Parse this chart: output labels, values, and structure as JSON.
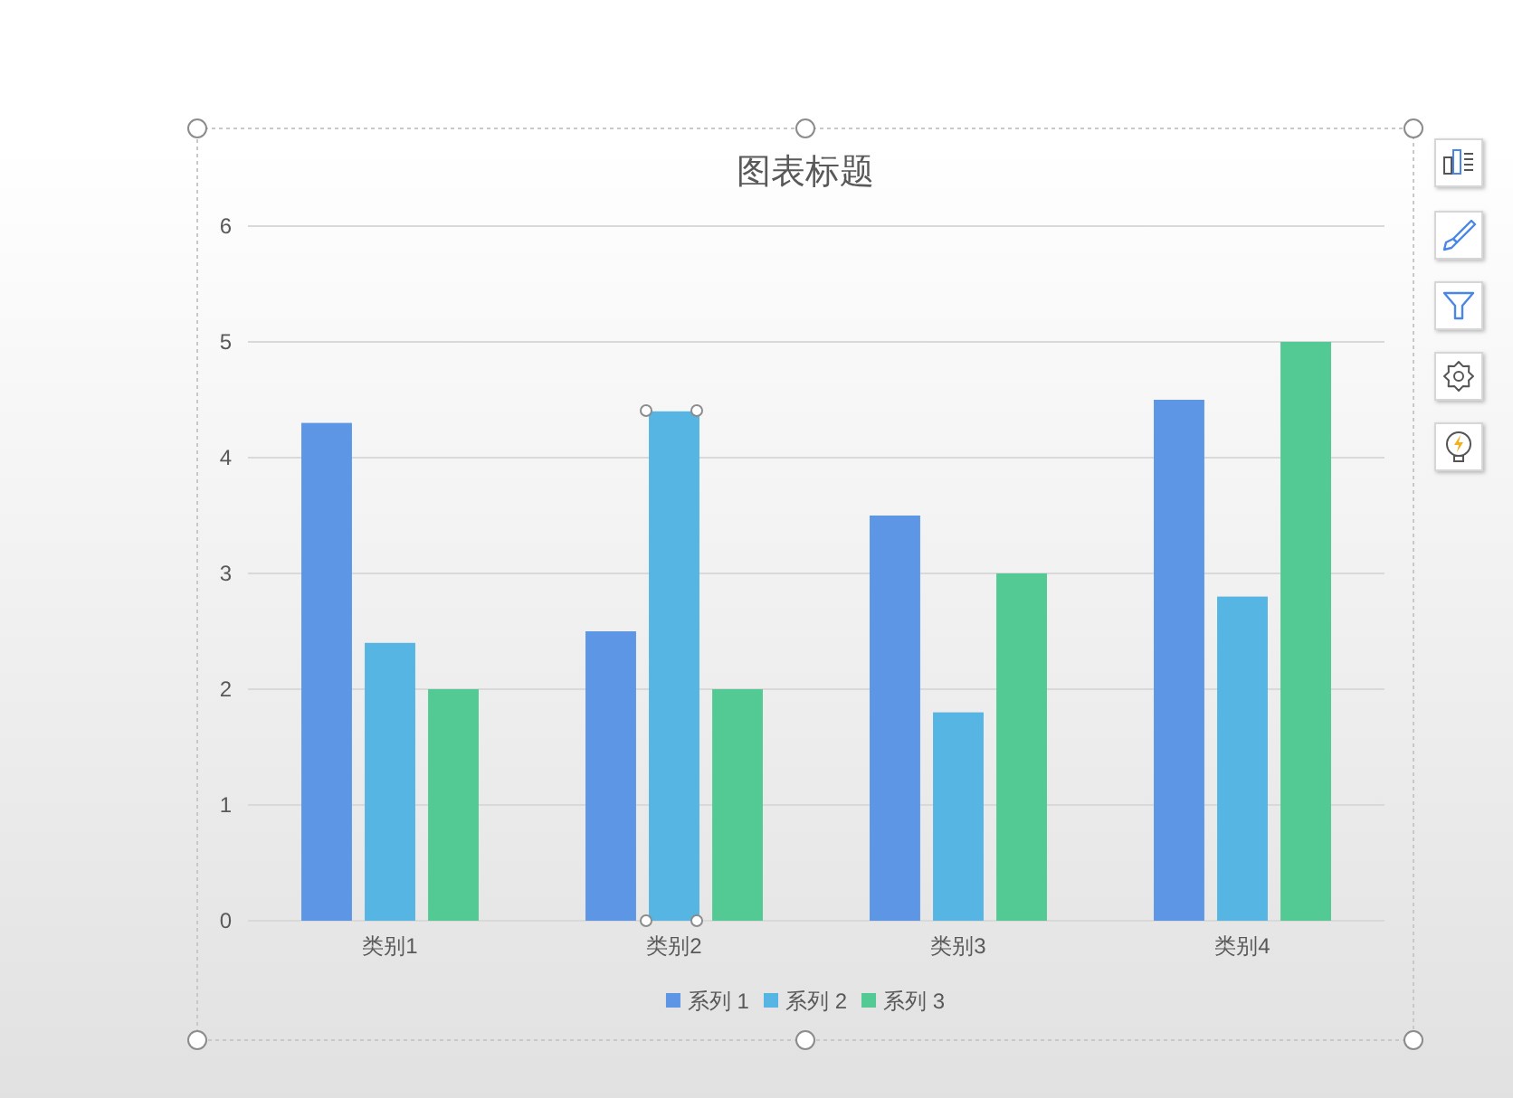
{
  "chart_data": {
    "type": "bar",
    "title": "图表标题",
    "categories": [
      "类别1",
      "类别2",
      "类别3",
      "类别4"
    ],
    "series": [
      {
        "name": "系列 1",
        "color": "#5e96e6",
        "values": [
          4.3,
          2.5,
          3.5,
          4.5
        ]
      },
      {
        "name": "系列 2",
        "color": "#56b5e3",
        "values": [
          2.4,
          4.4,
          1.8,
          2.8
        ]
      },
      {
        "name": "系列 3",
        "color": "#53ca93",
        "values": [
          2,
          2,
          3,
          5
        ]
      }
    ],
    "ylim": [
      0,
      6
    ],
    "yticks": [
      0,
      1,
      2,
      3,
      4,
      5,
      6
    ],
    "grid": "y",
    "legend": "bottom"
  }
}
